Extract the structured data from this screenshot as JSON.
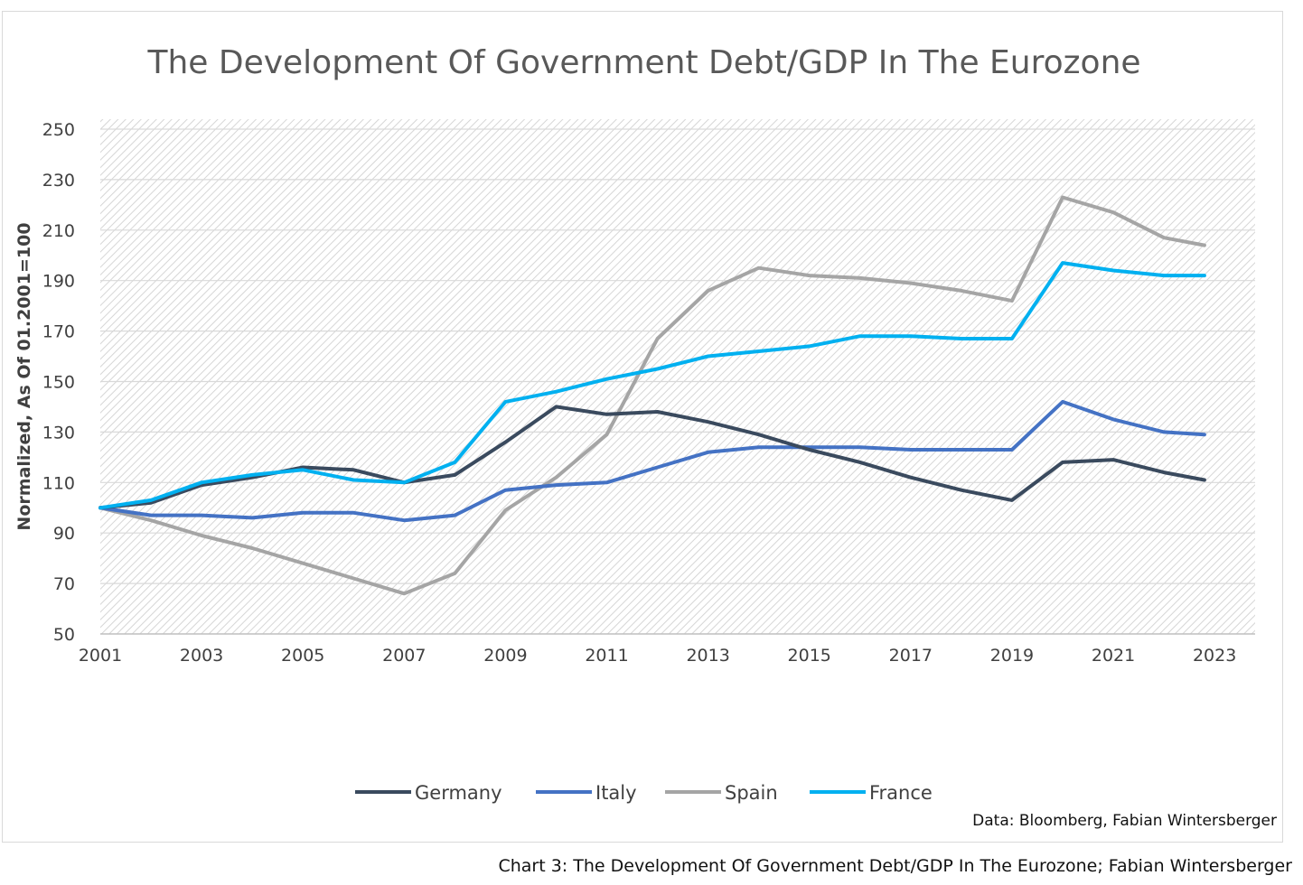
{
  "chart_data": {
    "type": "line",
    "title": "The Development Of Government Debt/GDP In The Eurozone",
    "xlabel": "",
    "ylabel": "Normalized, As Of 01.2001=100",
    "xlim": [
      2001,
      2023.8
    ],
    "ylim": [
      50,
      250
    ],
    "x_ticks": [
      "2001",
      "2003",
      "2005",
      "2007",
      "2009",
      "2011",
      "2013",
      "2015",
      "2017",
      "2019",
      "2021",
      "2023"
    ],
    "y_ticks": [
      "50",
      "70",
      "90",
      "110",
      "130",
      "150",
      "170",
      "190",
      "210",
      "230",
      "250"
    ],
    "grid": true,
    "legend_position": "bottom",
    "x": [
      2001,
      2002,
      2003,
      2004,
      2005,
      2006,
      2007,
      2008,
      2009,
      2010,
      2011,
      2012,
      2013,
      2014,
      2015,
      2016,
      2017,
      2018,
      2019,
      2020,
      2021,
      2022,
      2022.8
    ],
    "series": [
      {
        "name": "Germany",
        "color": "#3a4a5e",
        "values": [
          100,
          102,
          109,
          112,
          116,
          115,
          110,
          113,
          126,
          140,
          137,
          138,
          134,
          129,
          123,
          118,
          112,
          107,
          103,
          118,
          119,
          114,
          111
        ]
      },
      {
        "name": "Italy",
        "color": "#4472c4",
        "values": [
          100,
          97,
          97,
          96,
          98,
          98,
          95,
          97,
          107,
          109,
          110,
          116,
          122,
          124,
          124,
          124,
          123,
          123,
          123,
          142,
          135,
          130,
          129
        ]
      },
      {
        "name": "Spain",
        "color": "#a5a5a5",
        "values": [
          100,
          95,
          89,
          84,
          78,
          72,
          66,
          74,
          99,
          112,
          129,
          167,
          186,
          195,
          192,
          191,
          189,
          186,
          182,
          223,
          217,
          207,
          204
        ]
      },
      {
        "name": "France",
        "color": "#00b0f0",
        "values": [
          100,
          103,
          110,
          113,
          115,
          111,
          110,
          118,
          142,
          146,
          151,
          155,
          160,
          162,
          164,
          168,
          168,
          167,
          167,
          197,
          194,
          192,
          192
        ]
      }
    ],
    "source_note": "Data: Bloomberg, Fabian Wintersberger"
  },
  "caption": "Chart 3: The Development Of Government Debt/GDP In The Eurozone; Fabian Wintersberger"
}
